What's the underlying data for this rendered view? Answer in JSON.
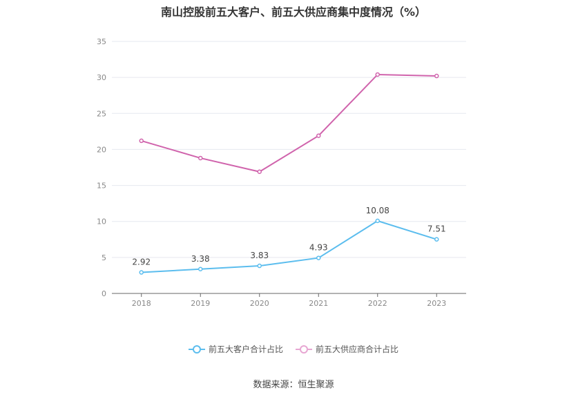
{
  "chart_data": {
    "type": "line",
    "title": "南山控股前五大客户、前五大供应商集中度情况（%）",
    "categories": [
      "2018",
      "2019",
      "2020",
      "2021",
      "2022",
      "2023"
    ],
    "ylim": [
      0,
      35
    ],
    "yticks": [
      0,
      5,
      10,
      15,
      20,
      25,
      30,
      35
    ],
    "ytick_labels": [
      "0",
      "5",
      "10",
      "15",
      "20",
      "25",
      "30",
      "35"
    ],
    "xlabel": "",
    "ylabel": "",
    "grid": true,
    "series": [
      {
        "name": "前五大客户合计占比",
        "color": "#5bbdee",
        "values": [
          2.92,
          3.38,
          3.83,
          4.93,
          10.08,
          7.51
        ],
        "value_labels": [
          "2.92",
          "3.38",
          "3.83",
          "4.93",
          "10.08",
          "7.51"
        ],
        "show_labels": true
      },
      {
        "name": "前五大供应商合计占比",
        "color": "#d063ac",
        "values": [
          21.2,
          18.8,
          16.9,
          21.9,
          30.4,
          30.2
        ],
        "show_labels": false
      }
    ],
    "legend_position": "bottom"
  },
  "source": "数据来源：恒生聚源"
}
